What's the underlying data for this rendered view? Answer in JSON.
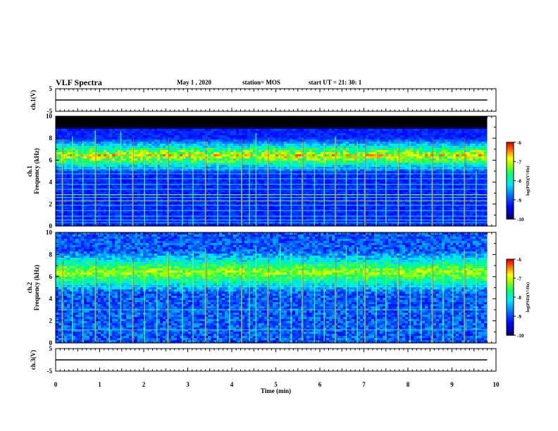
{
  "header": {
    "title": "VLF Spectra",
    "date": "May 1 , 2020",
    "station": "station= MOS",
    "start": "start UT = 21: 30: 1"
  },
  "colorbar": {
    "label": "log(PSD)(V²/Hz)",
    "ticks": [
      -6,
      -7,
      -8,
      -9,
      -10
    ],
    "colors": [
      "#000080",
      "#0000ff",
      "#0080ff",
      "#00ffff",
      "#00ff80",
      "#80ff00",
      "#ffff00",
      "#ff8000",
      "#ff0000",
      "#ffffff"
    ]
  },
  "chart_data": [
    {
      "type": "line",
      "panel": "ch1-voltage",
      "ylabel": "ch.1(V)",
      "ylim": [
        -5,
        5
      ],
      "yticks": [
        5,
        -5
      ],
      "series": [
        {
          "x": [
            0,
            9.8
          ],
          "y": [
            0,
            0
          ]
        }
      ]
    },
    {
      "type": "heatmap",
      "panel": "ch1-spectrogram",
      "ylabel": "ch.1\nFrequency (kHz)",
      "ylim": [
        0,
        10
      ],
      "yticks": [
        0,
        2,
        4,
        6,
        8,
        10
      ],
      "xlim": [
        0,
        9.8
      ],
      "band_khz": [
        5.5,
        7.5
      ],
      "cutoff_khz": 9.0,
      "tones_khz": [
        0.3,
        0.55,
        0.9,
        1.4,
        1.9,
        2.3,
        2.6,
        2.85,
        3.35,
        3.8,
        4.3,
        4.75,
        5.2
      ],
      "spikes_min": [
        0.15,
        0.38,
        0.62,
        0.9,
        1.22,
        1.48,
        1.75,
        2.02,
        2.3,
        2.55,
        2.88,
        3.12,
        3.4,
        3.68,
        3.95,
        4.22,
        4.4,
        4.55,
        4.82,
        5.1,
        5.35,
        5.6,
        5.88,
        6.1,
        6.35,
        6.6,
        6.85,
        7.02,
        7.28,
        7.5,
        7.78,
        8.05,
        8.3,
        8.55,
        8.8,
        9.02,
        9.28,
        9.55
      ]
    },
    {
      "type": "heatmap",
      "panel": "ch2-spectrogram",
      "ylabel": "ch.2\nFrequency (kHz)",
      "ylim": [
        0,
        10
      ],
      "yticks": [
        0,
        2,
        4,
        6,
        8,
        10
      ],
      "xlim": [
        0,
        9.8
      ],
      "band_khz": [
        5.3,
        7.7
      ],
      "tones_khz": [
        1.2,
        3.0,
        5.1
      ],
      "spikes_min": [
        0.15,
        0.38,
        0.62,
        0.9,
        1.22,
        1.48,
        1.75,
        2.02,
        2.3,
        2.55,
        2.88,
        3.12,
        3.4,
        3.68,
        3.95,
        4.22,
        4.4,
        4.55,
        4.82,
        5.1,
        5.35,
        5.6,
        5.88,
        6.1,
        6.35,
        6.6,
        6.85,
        7.02,
        7.28,
        7.5,
        7.78,
        8.05,
        8.3,
        8.55,
        8.8,
        9.02,
        9.28,
        9.55
      ]
    },
    {
      "type": "line",
      "panel": "ch3-voltage",
      "ylabel": "ch.3(V)",
      "ylim": [
        -5,
        5
      ],
      "yticks": [
        5,
        -5
      ],
      "series": [
        {
          "x": [
            0,
            9.8
          ],
          "y": [
            0,
            0
          ]
        }
      ]
    }
  ],
  "xaxis": {
    "label": "Time (min)",
    "ticks": [
      0,
      1,
      2,
      3,
      4,
      5,
      6,
      7,
      8,
      9,
      10
    ],
    "xlim": [
      0,
      10
    ]
  }
}
